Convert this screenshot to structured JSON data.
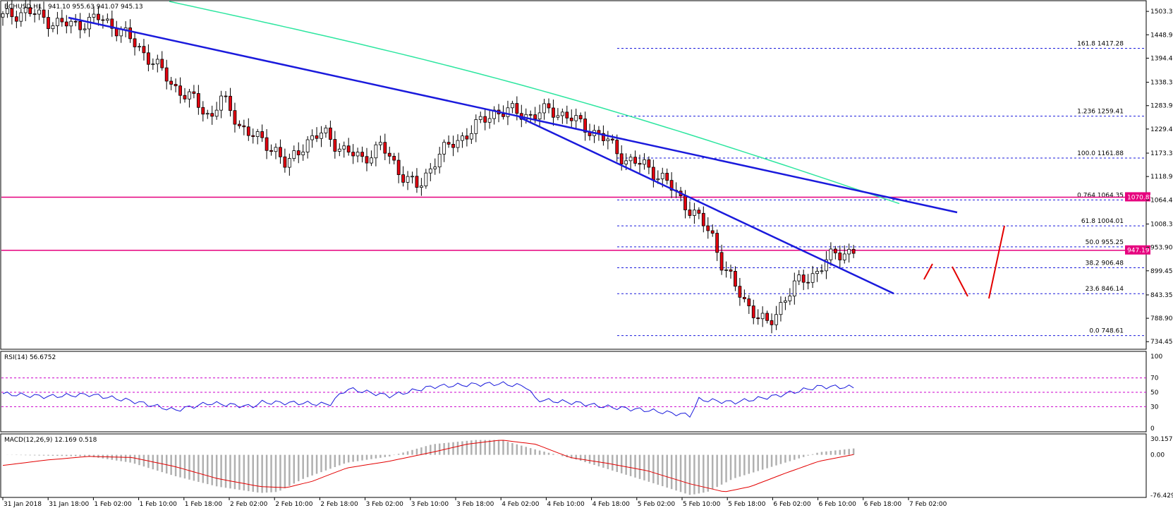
{
  "header": {
    "symbol": "BCHUSD,H1",
    "ohlc": "941.10 955.63 941.07 945.13",
    "rsi_label": "RSI(14) 56.6752",
    "macd_label": "MACD(12,26,9) 12.169 0.518"
  },
  "colors": {
    "bull": "#ffffff",
    "bear": "#e3000f",
    "wick": "#000000",
    "trendline": "#1a1adc",
    "ma": "#2ee6a0",
    "level": "#e6007e",
    "fib": "#1a1adc",
    "rsi_line": "#1a1adc",
    "rsi_level": "#cc00cc",
    "macd_hist": "#b0b0b0",
    "macd_signal": "#e30000",
    "projection": "#e30000"
  },
  "price_axis": {
    "ticks": [
      "1503.35",
      "1448.90",
      "1394.45",
      "1338.35",
      "1283.90",
      "1229.45",
      "1173.35",
      "1118.90",
      "1064.45",
      "1008.35",
      "953.90",
      "899.45",
      "843.35",
      "788.90",
      "734.45"
    ],
    "tag_upper": "1070.85",
    "tag_lower": "947.19"
  },
  "rsi_axis": {
    "ticks": [
      "100",
      "70",
      "50",
      "30",
      "0"
    ]
  },
  "macd_axis": {
    "ticks": [
      "30.157",
      "0.00",
      "-76.429"
    ]
  },
  "time_axis": {
    "ticks": [
      "31 Jan 2018",
      "31 Jan 18:00",
      "1 Feb 02:00",
      "1 Feb 10:00",
      "1 Feb 18:00",
      "2 Feb 02:00",
      "2 Feb 10:00",
      "2 Feb 18:00",
      "3 Feb 02:00",
      "3 Feb 10:00",
      "3 Feb 18:00",
      "4 Feb 02:00",
      "4 Feb 10:00",
      "4 Feb 18:00",
      "5 Feb 02:00",
      "5 Feb 10:00",
      "5 Feb 18:00",
      "6 Feb 02:00",
      "6 Feb 10:00",
      "6 Feb 18:00",
      "7 Feb 02:00"
    ]
  },
  "fib_levels": [
    {
      "label": "161.8  1417.28",
      "price": 1417.28
    },
    {
      "label": "1.236  1259.41",
      "price": 1259.41
    },
    {
      "label": "100.0  1161.88",
      "price": 1161.88
    },
    {
      "label": "0.764  1064.35",
      "price": 1064.35
    },
    {
      "label": "61.8  1004.01",
      "price": 1004.01
    },
    {
      "label": "50.0  955.25",
      "price": 955.25
    },
    {
      "label": "38.2  906.48",
      "price": 906.48
    },
    {
      "label": "23.6  846.14",
      "price": 846.14
    },
    {
      "label": "0.0  748.61",
      "price": 748.61
    }
  ],
  "chart_data": {
    "type": "candlestick",
    "title": "BCHUSD,H1",
    "ylim": [
      725,
      1520
    ],
    "horizontal_levels": [
      1070.85,
      947.19
    ],
    "price_path": [
      [
        0,
        1490
      ],
      [
        5,
        1505
      ],
      [
        10,
        1480
      ],
      [
        15,
        1470
      ],
      [
        20,
        1488
      ],
      [
        25,
        1460
      ],
      [
        28,
        1425
      ],
      [
        32,
        1385
      ],
      [
        36,
        1330
      ],
      [
        40,
        1300
      ],
      [
        44,
        1255
      ],
      [
        46,
        1305
      ],
      [
        50,
        1240
      ],
      [
        54,
        1205
      ],
      [
        58,
        1180
      ],
      [
        60,
        1140
      ],
      [
        64,
        1200
      ],
      [
        68,
        1220
      ],
      [
        72,
        1180
      ],
      [
        76,
        1160
      ],
      [
        80,
        1190
      ],
      [
        84,
        1130
      ],
      [
        88,
        1090
      ],
      [
        92,
        1170
      ],
      [
        96,
        1200
      ],
      [
        100,
        1235
      ],
      [
        104,
        1270
      ],
      [
        108,
        1270
      ],
      [
        112,
        1260
      ],
      [
        116,
        1275
      ],
      [
        120,
        1255
      ],
      [
        124,
        1230
      ],
      [
        128,
        1200
      ],
      [
        132,
        1155
      ],
      [
        136,
        1145
      ],
      [
        140,
        1110
      ],
      [
        144,
        1060
      ],
      [
        148,
        1010
      ],
      [
        150,
        985
      ],
      [
        152,
        920
      ],
      [
        155,
        860
      ],
      [
        158,
        815
      ],
      [
        160,
        790
      ],
      [
        162,
        770
      ],
      [
        165,
        830
      ],
      [
        168,
        870
      ],
      [
        172,
        895
      ],
      [
        176,
        940
      ],
      [
        180,
        945
      ]
    ],
    "rsi_path": [
      [
        0,
        48
      ],
      [
        10,
        44
      ],
      [
        20,
        47
      ],
      [
        30,
        38
      ],
      [
        40,
        25
      ],
      [
        48,
        35
      ],
      [
        58,
        30
      ],
      [
        60,
        36
      ],
      [
        70,
        35
      ],
      [
        76,
        33
      ],
      [
        80,
        55
      ],
      [
        90,
        45
      ],
      [
        100,
        58
      ],
      [
        110,
        61
      ],
      [
        116,
        62
      ],
      [
        122,
        58
      ],
      [
        124,
        40
      ],
      [
        134,
        35
      ],
      [
        140,
        30
      ],
      [
        150,
        25
      ],
      [
        160,
        18
      ],
      [
        162,
        40
      ],
      [
        170,
        36
      ],
      [
        180,
        45
      ],
      [
        190,
        58
      ],
      [
        198,
        57
      ]
    ],
    "macd_hist_path": [
      [
        0,
        0
      ],
      [
        20,
        -3
      ],
      [
        30,
        -15
      ],
      [
        40,
        -40
      ],
      [
        50,
        -60
      ],
      [
        60,
        -72
      ],
      [
        64,
        -70
      ],
      [
        70,
        -45
      ],
      [
        80,
        -15
      ],
      [
        90,
        -3
      ],
      [
        100,
        20
      ],
      [
        110,
        28
      ],
      [
        116,
        28
      ],
      [
        124,
        10
      ],
      [
        134,
        -10
      ],
      [
        140,
        -25
      ],
      [
        150,
        -50
      ],
      [
        160,
        -76
      ],
      [
        164,
        -70
      ],
      [
        170,
        -45
      ],
      [
        180,
        -20
      ],
      [
        190,
        5
      ],
      [
        198,
        12
      ]
    ],
    "macd_signal_path": [
      [
        0,
        -20
      ],
      [
        10,
        -10
      ],
      [
        20,
        -3
      ],
      [
        30,
        -5
      ],
      [
        40,
        -22
      ],
      [
        50,
        -45
      ],
      [
        60,
        -60
      ],
      [
        66,
        -62
      ],
      [
        72,
        -50
      ],
      [
        80,
        -25
      ],
      [
        90,
        -12
      ],
      [
        100,
        5
      ],
      [
        108,
        20
      ],
      [
        116,
        28
      ],
      [
        124,
        20
      ],
      [
        132,
        -5
      ],
      [
        140,
        -15
      ],
      [
        150,
        -30
      ],
      [
        160,
        -55
      ],
      [
        168,
        -70
      ],
      [
        174,
        -60
      ],
      [
        182,
        -35
      ],
      [
        190,
        -12
      ],
      [
        198,
        0.5
      ]
    ]
  }
}
